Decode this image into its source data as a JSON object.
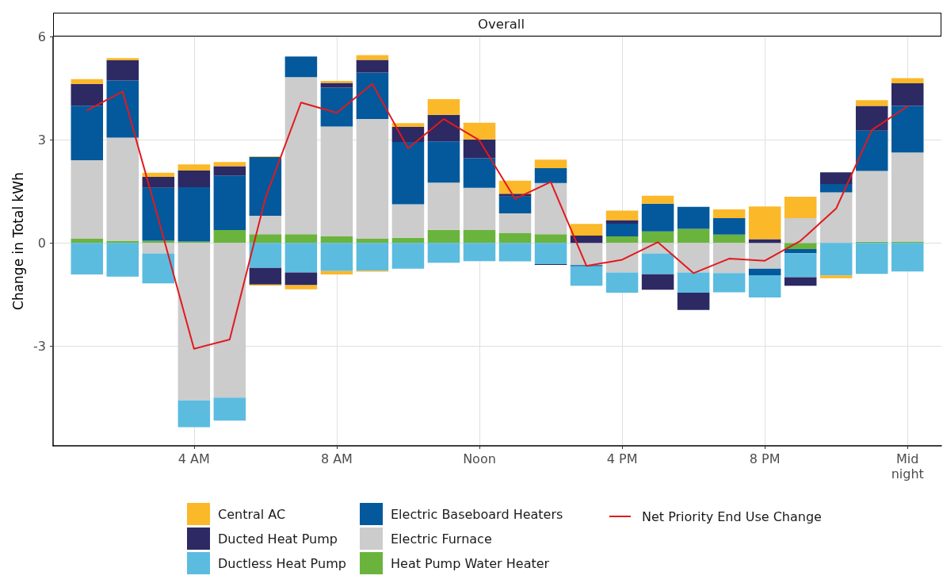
{
  "chart_data": {
    "type": "bar",
    "title": "Overall",
    "ylabel": "Change in Total kWh",
    "categories": [
      null,
      null,
      null,
      "4 AM",
      null,
      null,
      null,
      "8 AM",
      null,
      null,
      null,
      "Noon",
      null,
      null,
      null,
      "4 PM",
      null,
      null,
      null,
      "8 PM",
      null,
      null,
      null,
      "Mid\nnight"
    ],
    "ylim": [
      -5.9,
      6
    ],
    "yticks": [
      -3,
      0,
      3,
      6
    ],
    "stacked": true,
    "grid": true,
    "legend": "bottom",
    "marker": "none",
    "series": [
      {
        "name": "Heat Pump Water Heater",
        "color": "#6ab43e",
        "values": [
          0.12,
          0.06,
          0.06,
          0.04,
          0.37,
          0.25,
          0.25,
          0.19,
          0.12,
          0.15,
          0.38,
          0.37,
          0.29,
          0.25,
          null,
          0.19,
          0.33,
          0.41,
          0.24,
          null,
          -0.18,
          null,
          0.03,
          0.04
        ]
      },
      {
        "name": "Electric Furnace",
        "color": "#cccccc",
        "values": [
          2.28,
          3.0,
          -0.31,
          -4.58,
          -4.5,
          0.54,
          4.57,
          3.19,
          3.48,
          0.97,
          1.37,
          1.23,
          0.57,
          1.49,
          -0.65,
          -0.86,
          -0.31,
          -0.86,
          -0.88,
          -0.75,
          0.72,
          1.47,
          2.06,
          2.59
        ]
      },
      {
        "name": "Electric Baseboard Heaters",
        "color": "#03599c",
        "values": [
          1.59,
          1.66,
          1.54,
          1.58,
          1.59,
          1.71,
          0.6,
          1.13,
          1.35,
          1.81,
          1.2,
          0.86,
          0.49,
          0.43,
          -0.03,
          0.37,
          0.81,
          0.64,
          0.48,
          -0.19,
          -0.12,
          0.24,
          1.17,
          1.35
        ]
      },
      {
        "name": "Ductless Heat Pump",
        "color": "#5bbce0",
        "values": [
          -0.92,
          -0.98,
          -0.87,
          -0.78,
          -0.67,
          -0.73,
          -0.86,
          -0.82,
          -0.81,
          -0.75,
          -0.58,
          -0.53,
          -0.54,
          -0.62,
          -0.57,
          -0.59,
          -0.6,
          -0.59,
          -0.56,
          -0.65,
          -0.7,
          -0.95,
          -0.9,
          -0.83
        ]
      },
      {
        "name": "Ducted Heat Pump",
        "color": "#2d2963",
        "values": [
          0.63,
          0.59,
          0.32,
          0.48,
          0.27,
          -0.48,
          -0.37,
          0.14,
          0.37,
          0.44,
          0.77,
          0.55,
          0.08,
          -0.02,
          0.21,
          0.1,
          -0.45,
          -0.5,
          null,
          0.11,
          -0.25,
          0.34,
          0.72,
          0.66
        ]
      },
      {
        "name": "Central AC",
        "color": "#fbb829",
        "values": [
          0.14,
          0.06,
          0.12,
          0.18,
          0.12,
          0.02,
          null,
          0.06,
          0.14,
          0.11,
          0.46,
          0.48,
          0.38,
          0.25,
          0.34,
          0.28,
          0.23,
          null,
          0.25,
          0.95,
          0.62,
          null,
          0.17,
          0.15
        ]
      },
      {
        "color": "#fbb829",
        "values": [
          null,
          null,
          null,
          null,
          null,
          -0.03,
          -0.12,
          -0.1,
          -0.03,
          null,
          null,
          null,
          null,
          null,
          null,
          null,
          null,
          null,
          null,
          null,
          null,
          -0.08,
          null,
          null
        ]
      },
      {
        "name": "Net Priority End Use Change",
        "type": "line",
        "color": "#e2191e",
        "values": [
          3.85,
          4.4,
          0.7,
          -3.08,
          -2.81,
          1.3,
          4.08,
          3.78,
          4.62,
          2.75,
          3.6,
          2.98,
          1.28,
          1.77,
          -0.67,
          -0.49,
          0.02,
          -0.88,
          -0.46,
          -0.52,
          0.06,
          1.0,
          3.28,
          3.97
        ]
      }
    ]
  }
}
